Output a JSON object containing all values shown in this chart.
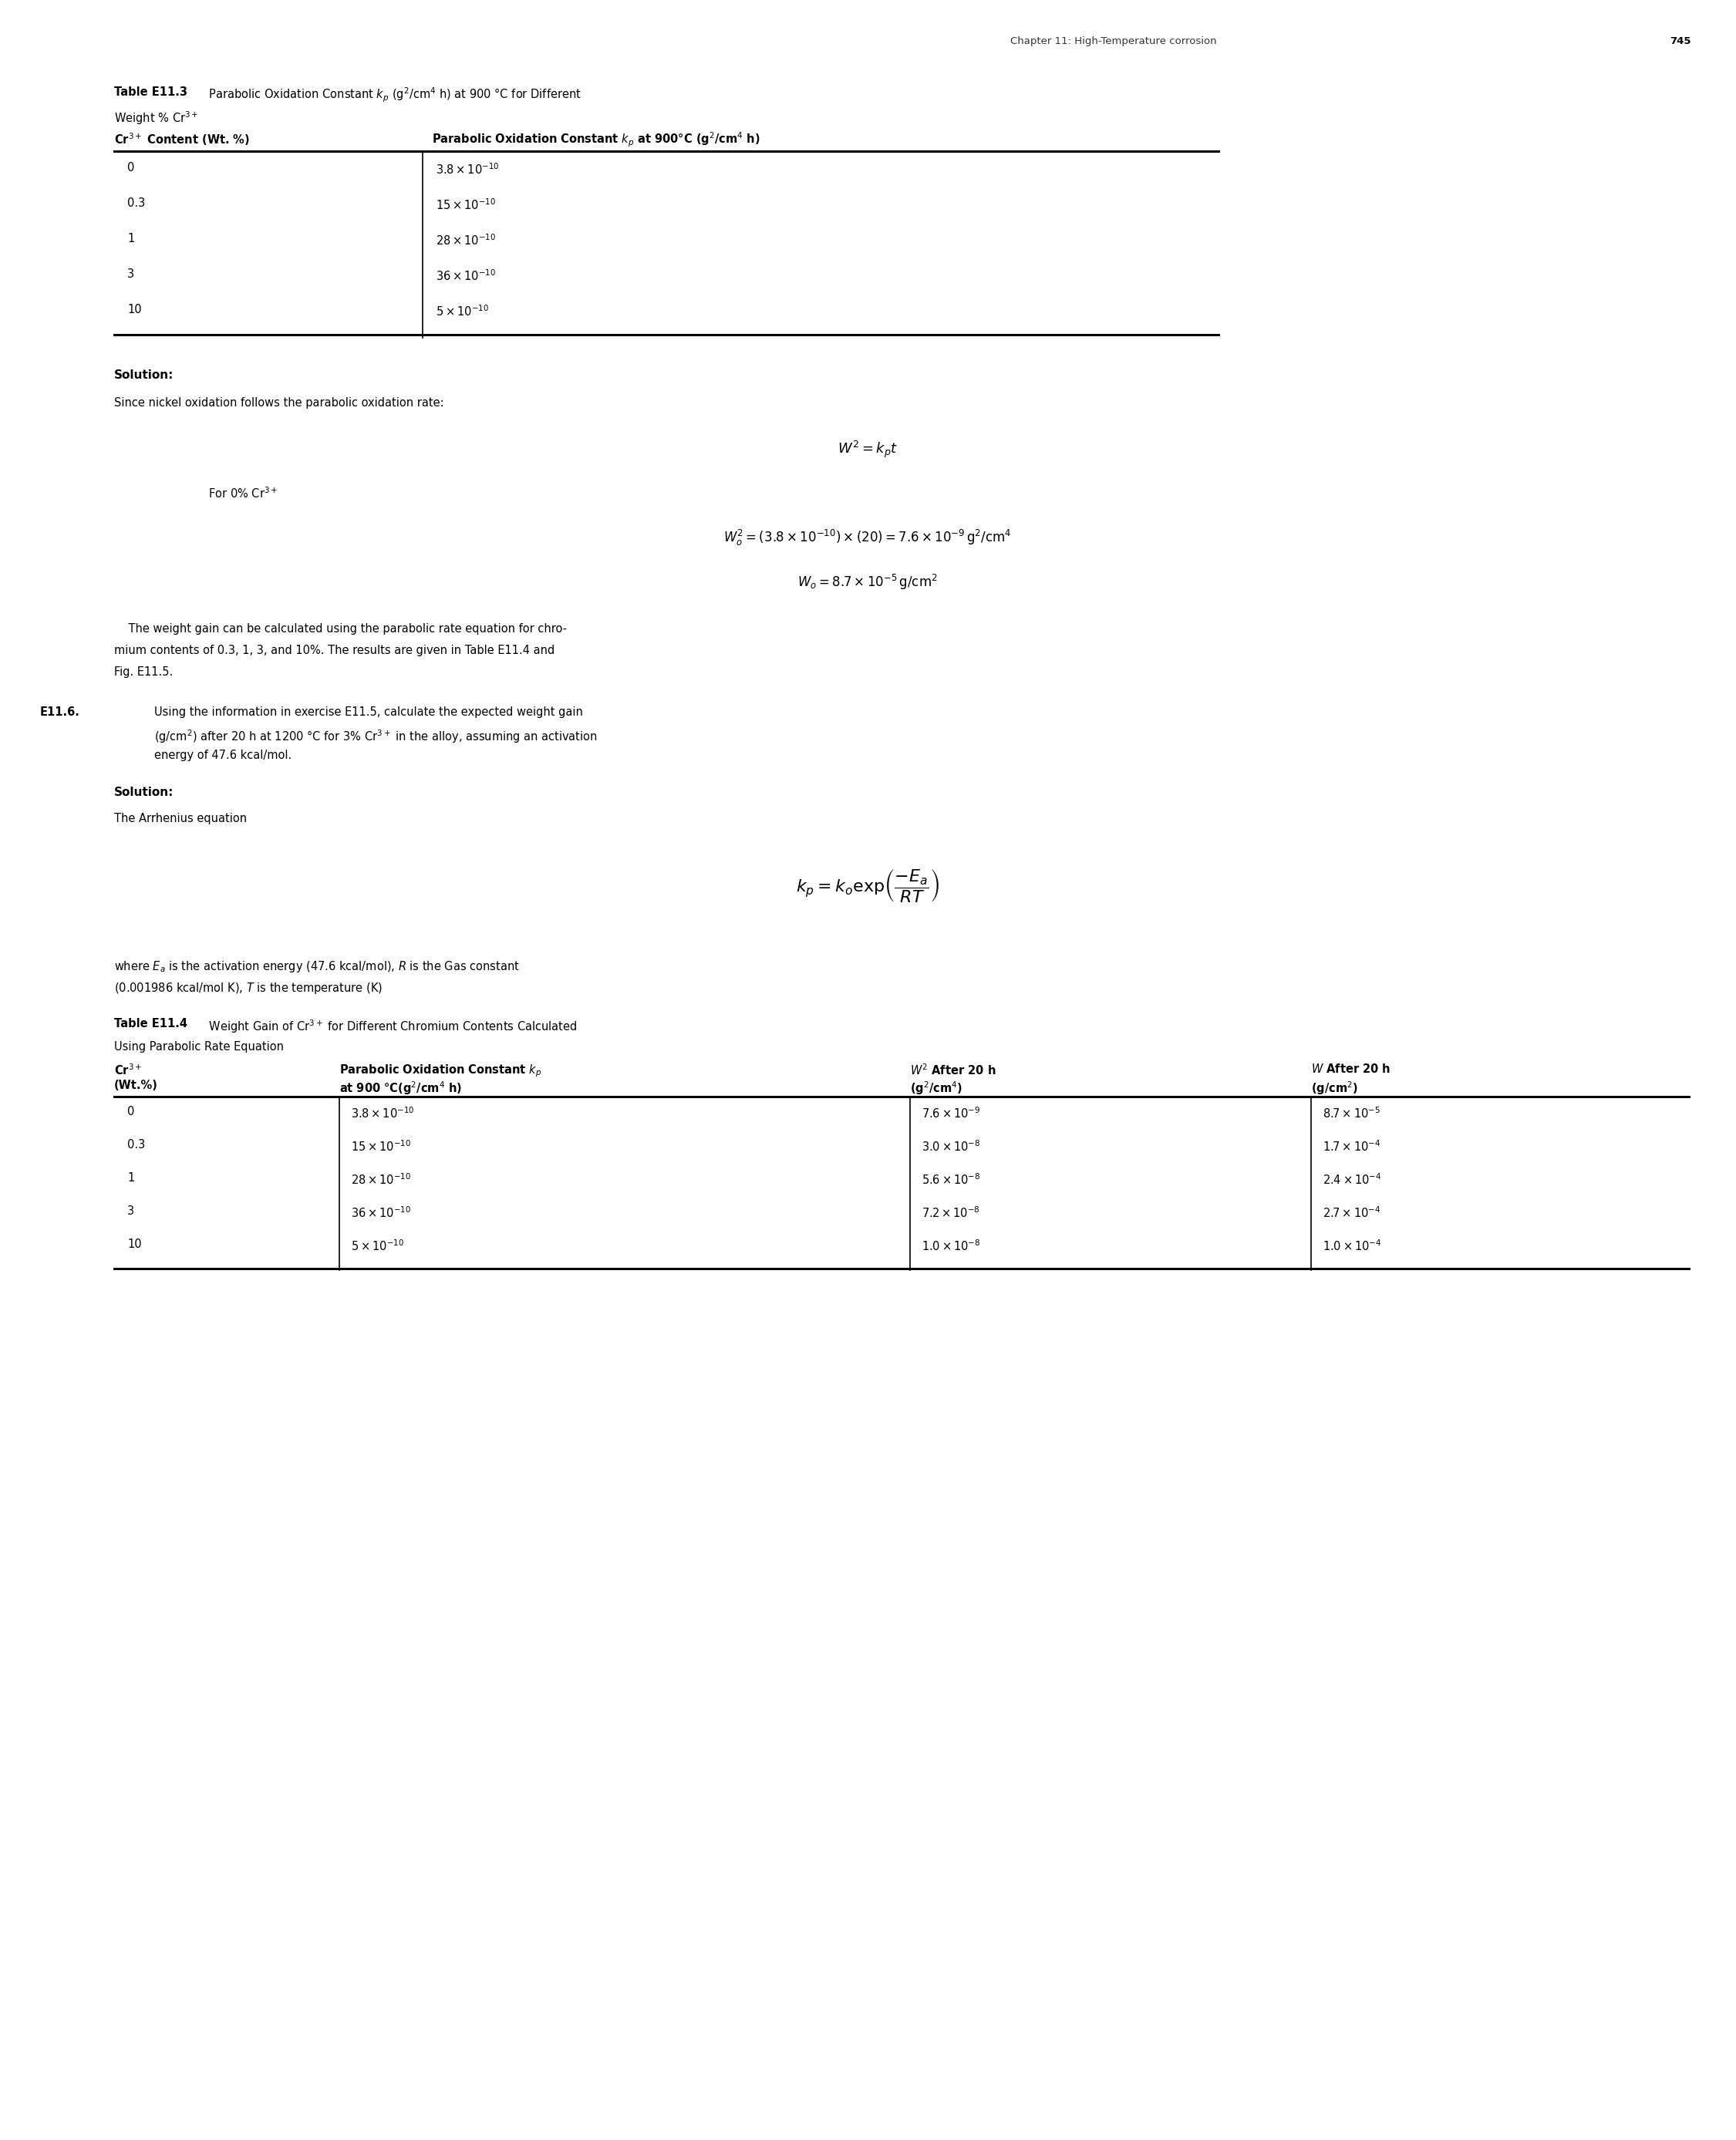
{
  "page_header": "Chapter 11: High-Temperature corrosion",
  "page_number": "745",
  "background_color": "#ffffff",
  "table1_col1": [
    "0",
    "0.3",
    "1",
    "3",
    "10"
  ],
  "table1_col2_math": [
    "$3.8 \\times 10^{-10}$",
    "$15 \\times 10^{-10}$",
    "$28 \\times 10^{-10}$",
    "$36 \\times 10^{-10}$",
    "$5 \\times 10^{-10}$"
  ],
  "table2_col1": [
    "0",
    "0.3",
    "1",
    "3",
    "10"
  ],
  "table2_col2_math": [
    "$3.8 \\times 10^{-10}$",
    "$15 \\times 10^{-10}$",
    "$28 \\times 10^{-10}$",
    "$36 \\times 10^{-10}$",
    "$5 \\times 10^{-10}$"
  ],
  "table2_col3_math": [
    "$7.6 \\times 10^{-9}$",
    "$3.0 \\times 10^{-8}$",
    "$5.6 \\times 10^{-8}$",
    "$7.2 \\times 10^{-8}$",
    "$1.0 \\times 10^{-8}$"
  ],
  "table2_col4_math": [
    "$8.7 \\times 10^{-5}$",
    "$1.7 \\times 10^{-4}$",
    "$2.4 \\times 10^{-4}$",
    "$2.7 \\times 10^{-4}$",
    "$1.0 \\times 10^{-4}$"
  ],
  "para1_line1": "    The weight gain can be calculated using the parabolic rate equation for chro-",
  "para1_line2": "mium contents of 0.3, 1, 3, and 10%. The results are given in Table E11.4 and",
  "para1_line3": "Fig. E11.5."
}
